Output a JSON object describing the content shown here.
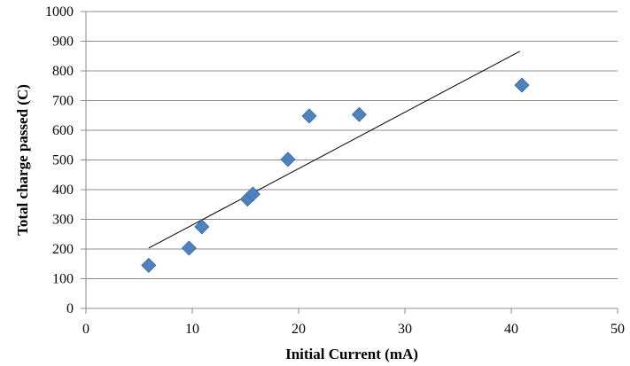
{
  "chart_data": {
    "type": "scatter",
    "title": "",
    "xlabel": "Initial Current (mA)",
    "ylabel": "Total charge passed (C)",
    "xlim": [
      0,
      50
    ],
    "ylim": [
      0,
      1000
    ],
    "x_ticks": [
      0,
      10,
      20,
      30,
      40,
      50
    ],
    "y_ticks": [
      0,
      100,
      200,
      300,
      400,
      500,
      600,
      700,
      800,
      900,
      1000
    ],
    "x_tick_labels": [
      "0",
      "10",
      "20",
      "30",
      "40",
      "50"
    ],
    "y_tick_labels": [
      "0",
      "100",
      "200",
      "300",
      "400",
      "500",
      "600",
      "700",
      "800",
      "900",
      "1000"
    ],
    "grid": "horizontal",
    "legend": "none",
    "series": [
      {
        "marker": "diamond",
        "color": "#4F81BD",
        "x": [
          5.9,
          9.7,
          10.9,
          15.2,
          15.7,
          19.0,
          21.0,
          25.7,
          41.0
        ],
        "y": [
          145,
          203,
          275,
          368,
          385,
          502,
          648,
          653,
          752
        ]
      }
    ],
    "trendline": {
      "type": "linear",
      "color": "#000000",
      "x": [
        5.9,
        40.8
      ],
      "y": [
        203,
        866
      ]
    }
  }
}
